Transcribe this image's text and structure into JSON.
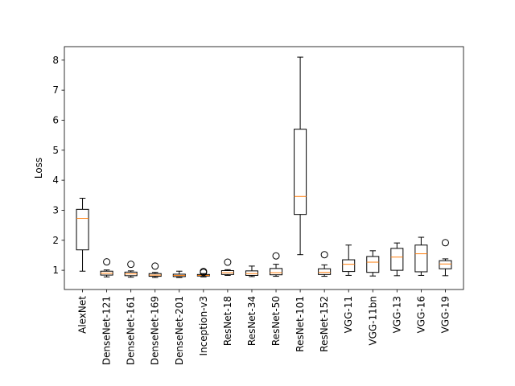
{
  "chart_data": {
    "type": "boxplot",
    "title": "",
    "xlabel": "",
    "ylabel": "Loss",
    "ylim": [
      0.36,
      8.45
    ],
    "yticks": [
      1,
      2,
      3,
      4,
      5,
      6,
      7,
      8
    ],
    "ytick_labels": [
      "1",
      "2",
      "3",
      "4",
      "5",
      "6",
      "7",
      "8"
    ],
    "grid": false,
    "colors": {
      "box": "#000000",
      "median": "#ff7f0e",
      "flier": "#000000"
    },
    "categories": [
      "AlexNet",
      "DenseNet-121",
      "DenseNet-161",
      "DenseNet-169",
      "DenseNet-201",
      "Inception-v3",
      "ResNet-18",
      "ResNet-34",
      "ResNet-50",
      "ResNet-101",
      "ResNet-152",
      "VGG-11",
      "VGG-11bn",
      "VGG-13",
      "VGG-16",
      "VGG-19"
    ],
    "boxes": [
      {
        "whislo": 0.97,
        "q1": 1.68,
        "med": 2.73,
        "q3": 3.03,
        "whishi": 3.4,
        "fliers": []
      },
      {
        "whislo": 0.78,
        "q1": 0.84,
        "med": 0.9,
        "q3": 0.97,
        "whishi": 1.01,
        "fliers": [
          1.28
        ]
      },
      {
        "whislo": 0.77,
        "q1": 0.82,
        "med": 0.88,
        "q3": 0.94,
        "whishi": 0.98,
        "fliers": [
          1.2
        ]
      },
      {
        "whislo": 0.76,
        "q1": 0.8,
        "med": 0.84,
        "q3": 0.89,
        "whishi": 0.93,
        "fliers": [
          1.14
        ]
      },
      {
        "whislo": 0.76,
        "q1": 0.79,
        "med": 0.83,
        "q3": 0.87,
        "whishi": 0.97,
        "fliers": []
      },
      {
        "whislo": 0.78,
        "q1": 0.81,
        "med": 0.83,
        "q3": 0.86,
        "whishi": 0.89,
        "fliers": [
          0.93,
          0.96
        ]
      },
      {
        "whislo": 0.83,
        "q1": 0.86,
        "med": 0.92,
        "q3": 0.99,
        "whishi": 1.02,
        "fliers": [
          1.27
        ]
      },
      {
        "whislo": 0.79,
        "q1": 0.83,
        "med": 0.89,
        "q3": 0.98,
        "whishi": 1.14,
        "fliers": []
      },
      {
        "whislo": 0.8,
        "q1": 0.85,
        "med": 0.92,
        "q3": 1.06,
        "whishi": 1.2,
        "fliers": [
          1.48
        ]
      },
      {
        "whislo": 1.52,
        "q1": 2.86,
        "med": 3.46,
        "q3": 5.7,
        "whishi": 8.1,
        "fliers": []
      },
      {
        "whislo": 0.8,
        "q1": 0.86,
        "med": 0.93,
        "q3": 1.05,
        "whishi": 1.18,
        "fliers": [
          1.52
        ]
      },
      {
        "whislo": 0.83,
        "q1": 0.96,
        "med": 1.2,
        "q3": 1.35,
        "whishi": 1.84,
        "fliers": []
      },
      {
        "whislo": 0.81,
        "q1": 0.93,
        "med": 1.27,
        "q3": 1.46,
        "whishi": 1.65,
        "fliers": []
      },
      {
        "whislo": 0.82,
        "q1": 1.0,
        "med": 1.44,
        "q3": 1.73,
        "whishi": 1.91,
        "fliers": []
      },
      {
        "whislo": 0.83,
        "q1": 0.95,
        "med": 1.55,
        "q3": 1.84,
        "whishi": 2.1,
        "fliers": []
      },
      {
        "whislo": 0.82,
        "q1": 1.05,
        "med": 1.21,
        "q3": 1.32,
        "whishi": 1.38,
        "fliers": [
          1.92
        ]
      }
    ]
  }
}
